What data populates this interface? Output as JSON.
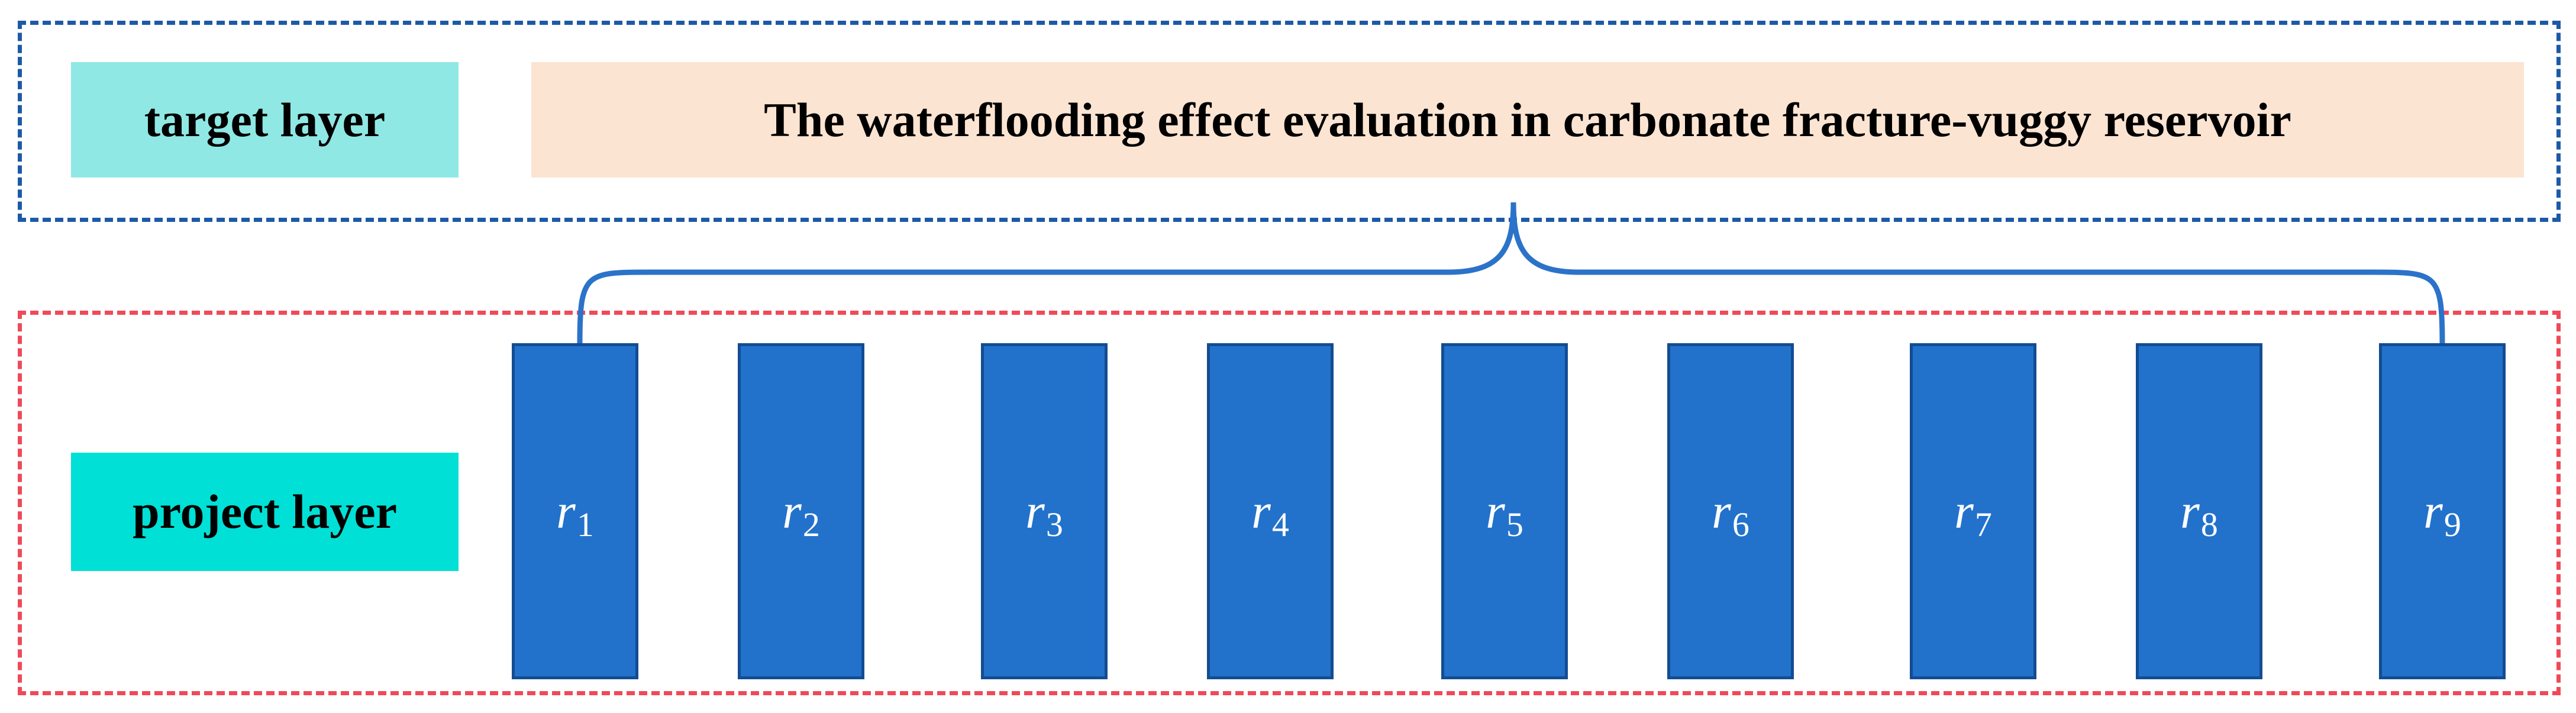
{
  "target_layer": {
    "label": "target layer",
    "goal": "The waterflooding effect evaluation in carbonate fracture-vuggy reservoir"
  },
  "project_layer": {
    "label": "project layer",
    "indicators": [
      {
        "symbol": "r",
        "sub": "1"
      },
      {
        "symbol": "r",
        "sub": "2"
      },
      {
        "symbol": "r",
        "sub": "3"
      },
      {
        "symbol": "r",
        "sub": "4"
      },
      {
        "symbol": "r",
        "sub": "5"
      },
      {
        "symbol": "r",
        "sub": "6"
      },
      {
        "symbol": "r",
        "sub": "7"
      },
      {
        "symbol": "r",
        "sub": "8"
      },
      {
        "symbol": "r",
        "sub": "9"
      }
    ]
  },
  "colors": {
    "target_frame": "#1d5aa6",
    "project_frame": "#ef4a59",
    "target_label_bg": "#8fe8e4",
    "goal_bg": "#fce4d2",
    "project_label_bg": "#00e0d6",
    "indicator_fill": "#2272cc",
    "brace": "#2b73c9"
  }
}
